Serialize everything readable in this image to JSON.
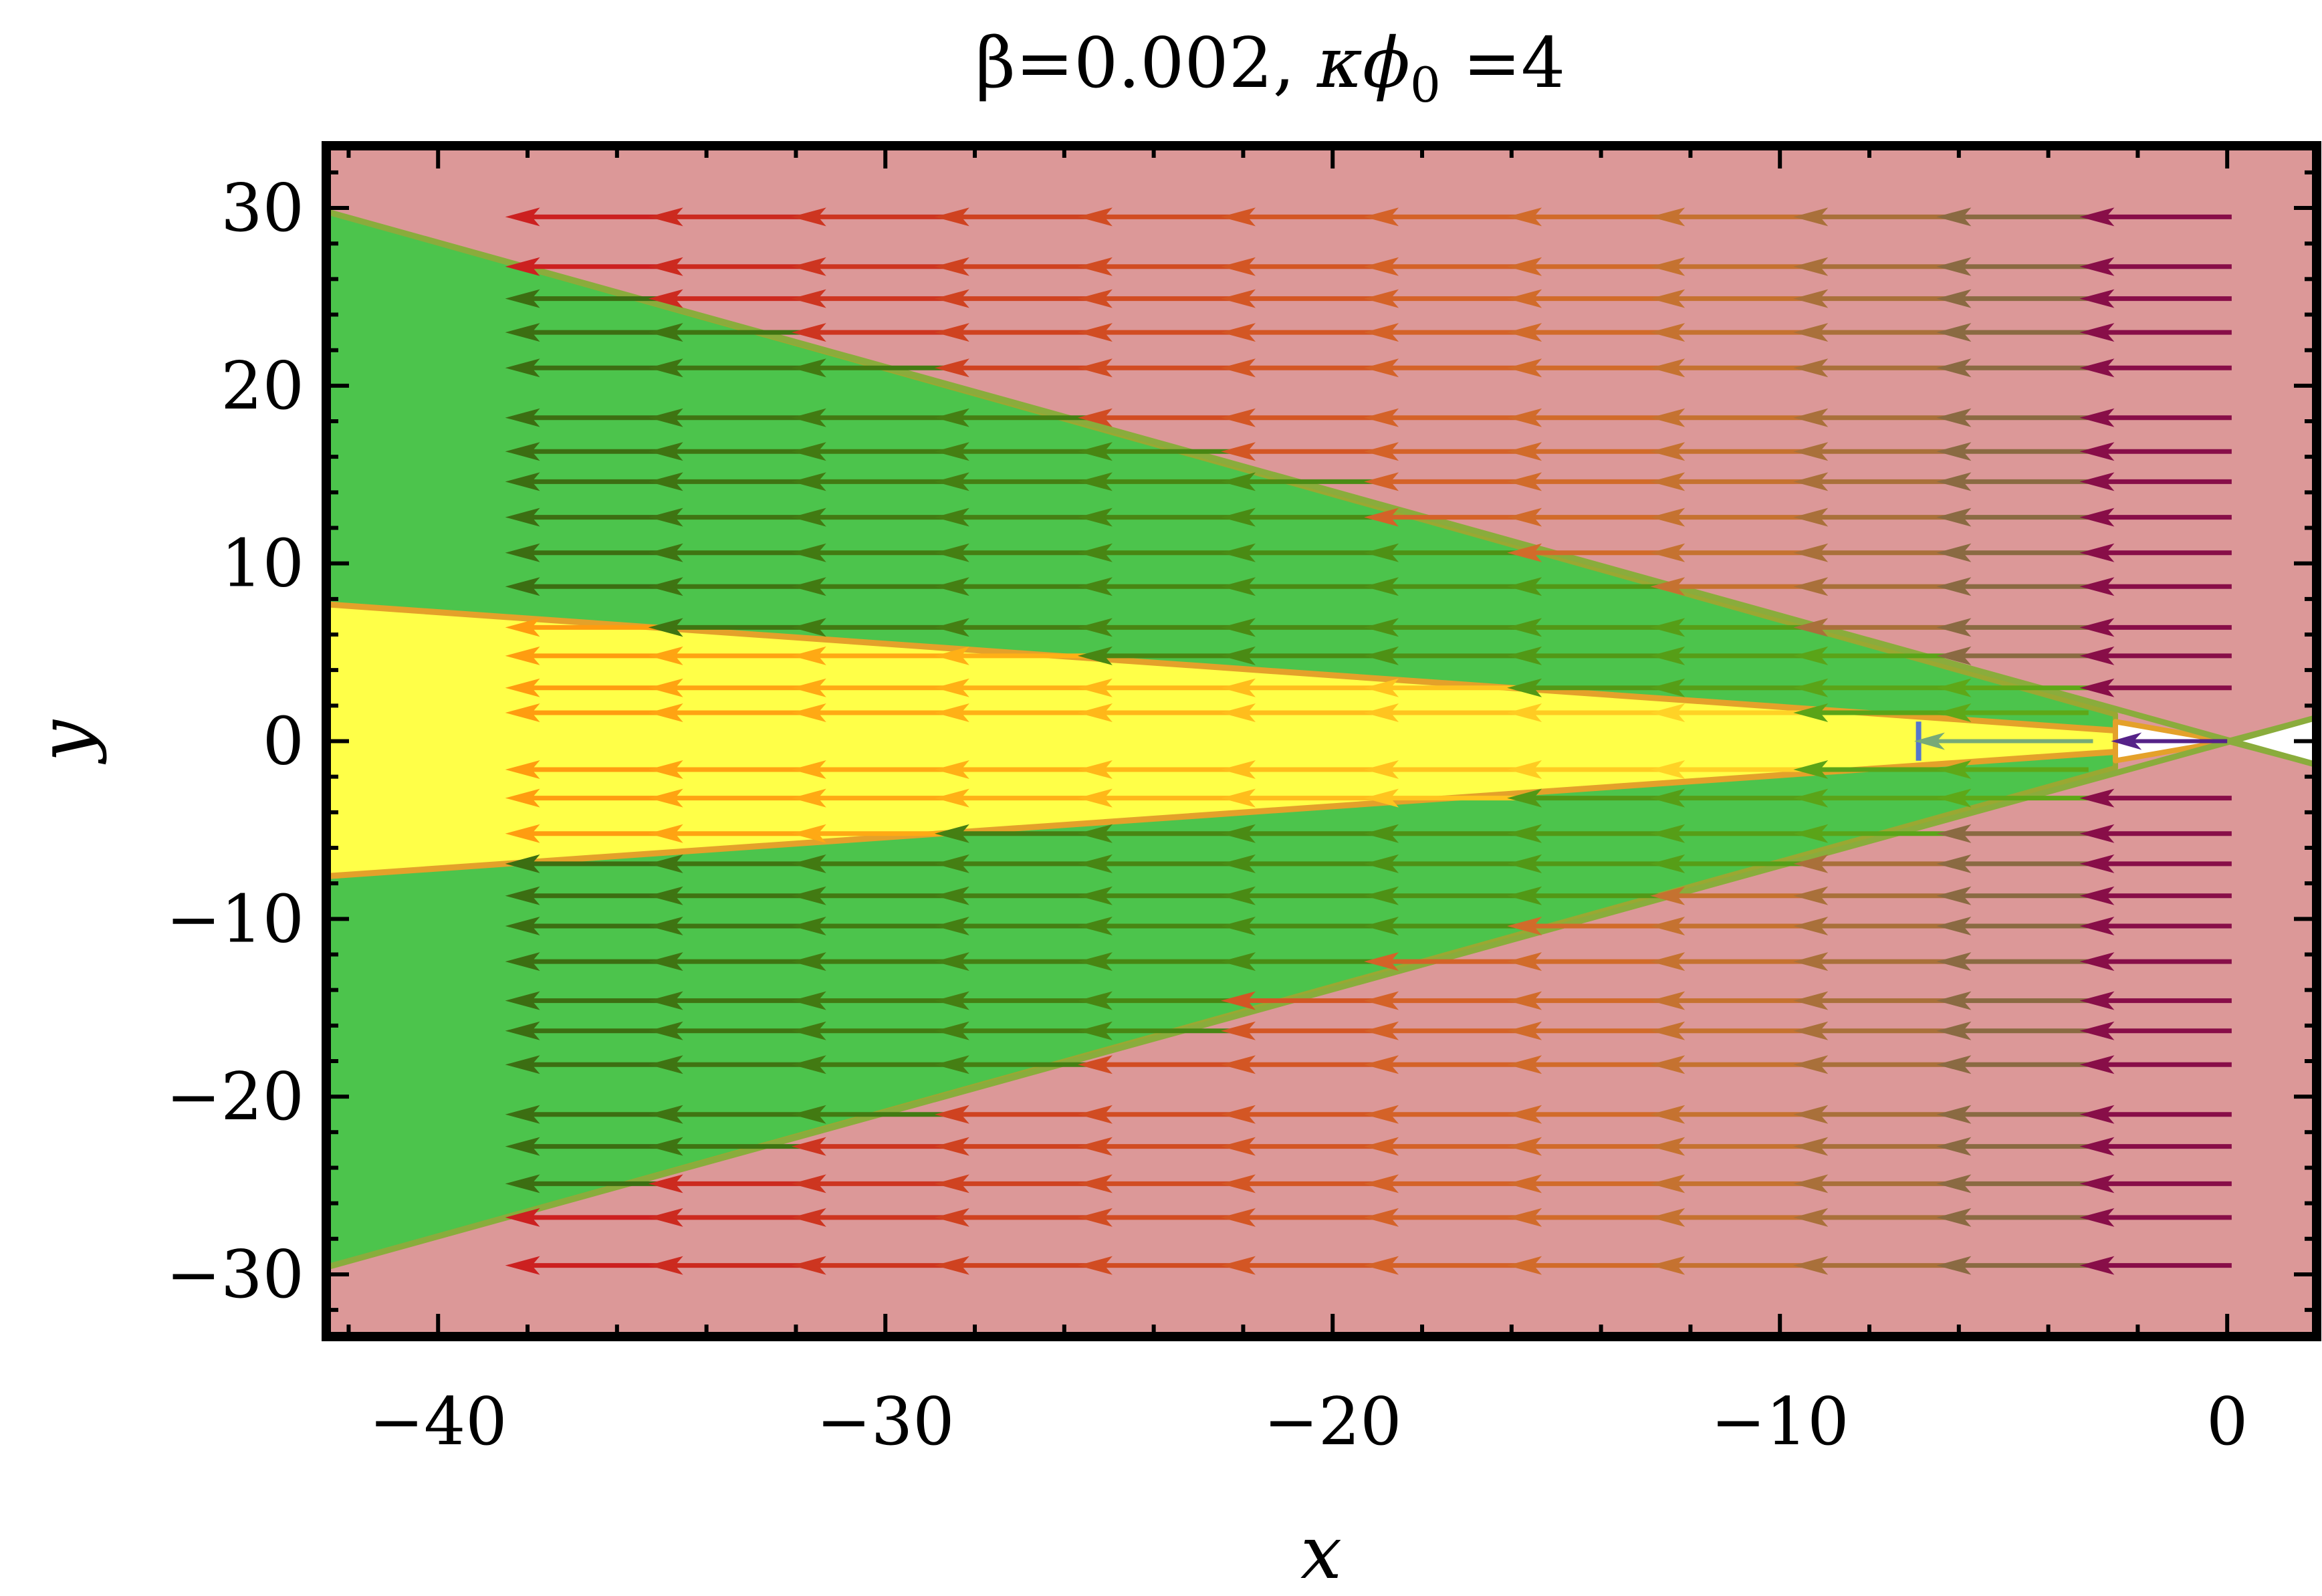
{
  "chart_data": {
    "type": "streamplot",
    "title": "β=0.002, κϕ₀ =4",
    "title_parts": {
      "beta": "β=0.002, ",
      "kappa": "κϕ",
      "sub": "0",
      "tail": " =4"
    },
    "xlabel": "x",
    "ylabel": "y",
    "xlim": [
      -42.5,
      2
    ],
    "ylim": [
      -33.5,
      33.5
    ],
    "x_ticks": [
      -40,
      -30,
      -20,
      -10,
      0
    ],
    "x_tick_labels": [
      "−40",
      "−30",
      "−20",
      "−10",
      "0"
    ],
    "y_ticks": [
      -30,
      -20,
      -10,
      0,
      10,
      20,
      30
    ],
    "y_tick_labels": [
      "−30",
      "−20",
      "−10",
      "0",
      "10",
      "20",
      "30"
    ],
    "background_color": "#dc9898",
    "regions": [
      {
        "name": "green-wedge",
        "color": "#4cc44c",
        "edge_color": "#9aa832",
        "polygon": [
          [
            -42.5,
            29.8
          ],
          [
            -2.5,
            1.5
          ],
          [
            -2.5,
            -1.5
          ],
          [
            -42.5,
            -29.6
          ]
        ]
      },
      {
        "name": "yellow-wedge",
        "color": "#ffff48",
        "edge_color": "#e4a12a",
        "polygon": [
          [
            -42.5,
            7.7
          ],
          [
            -2.5,
            0.6
          ],
          [
            -2.5,
            -0.6
          ],
          [
            -42.5,
            -7.6
          ]
        ]
      },
      {
        "name": "white-region",
        "color": "#ffffff",
        "edge_color": "#e4a12a",
        "polygon": [
          [
            -2.5,
            1.1
          ],
          [
            0,
            0
          ],
          [
            -2.5,
            -1.1
          ]
        ]
      },
      {
        "name": "white-region-right",
        "color": "#ffffff",
        "edge_color": "#8aac3c",
        "polygon": [
          [
            0,
            0
          ],
          [
            2.1,
            1.4
          ],
          [
            2.1,
            -1.4
          ]
        ]
      }
    ],
    "boundary_lines": [
      {
        "name": "green-upper-edge",
        "from": [
          -42.5,
          29.8
        ],
        "to": [
          2.1,
          -1.4
        ],
        "color": "#8aac3c"
      },
      {
        "name": "green-lower-edge",
        "from": [
          -42.5,
          -29.6
        ],
        "to": [
          2.1,
          1.4
        ],
        "color": "#8aac3c"
      },
      {
        "name": "yellow-upper-edge",
        "from": [
          -42.5,
          7.7
        ],
        "to": [
          -2.5,
          0.6
        ],
        "color": "#e4a12a"
      },
      {
        "name": "yellow-lower-edge",
        "from": [
          -42.5,
          -7.6
        ],
        "to": [
          -2.5,
          -0.6
        ],
        "color": "#e4a12a"
      }
    ],
    "blue_segment": {
      "x": -6.9,
      "y_from": -1.1,
      "y_to": 1.1,
      "color": "#5577cc"
    },
    "center_arrows": [
      {
        "from": [
          -3.0,
          0
        ],
        "to": [
          -7.0,
          0
        ],
        "color": "#77aa77"
      },
      {
        "from": [
          0,
          0
        ],
        "to": [
          -2.6,
          0
        ],
        "color": "#552288"
      }
    ],
    "vector_field": {
      "direction": "toward -x",
      "arrow_length": 3.4,
      "head_x": [
        -38.5,
        -35.3,
        -32.1,
        -28.9,
        -25.7,
        -22.5,
        -19.3,
        -16.1,
        -12.9,
        -9.7,
        -6.5,
        -3.3
      ],
      "rows_y": [
        29.5,
        26.7,
        24.9,
        23.0,
        21.0,
        18.2,
        16.3,
        14.6,
        12.6,
        10.6,
        8.7,
        6.4,
        4.8,
        3.0,
        1.6,
        -1.6,
        -3.2,
        -5.2,
        -6.9,
        -8.7,
        -10.4,
        -12.4,
        -14.6,
        -16.3,
        -18.2,
        -21.0,
        -22.8,
        -24.9,
        -26.8,
        -29.5
      ],
      "colors_by_region": {
        "outer": [
          "#cc2020",
          "#cc2a1f",
          "#cd3520",
          "#cf4220",
          "#d14c22",
          "#d35624",
          "#d46228",
          "#d16b2a",
          "#c57230",
          "#a9703a",
          "#8a6a42",
          "#880e48"
        ],
        "green": [
          "#3c6e12",
          "#3f7412",
          "#427a12",
          "#457f13",
          "#488613",
          "#4a8b14",
          "#4e9115",
          "#529816",
          "#569e17",
          "#5aa418",
          "#5ea818",
          "#5ea818"
        ],
        "yellow": [
          "#ff9c10",
          "#ffa312",
          "#ffa914",
          "#ffb016",
          "#ffb719",
          "#ffbd1c",
          "#ffc41f",
          "#ffcb22",
          "#ffd226",
          "#ffd92a",
          "#ffd92a",
          "#ffd92a"
        ]
      }
    }
  }
}
